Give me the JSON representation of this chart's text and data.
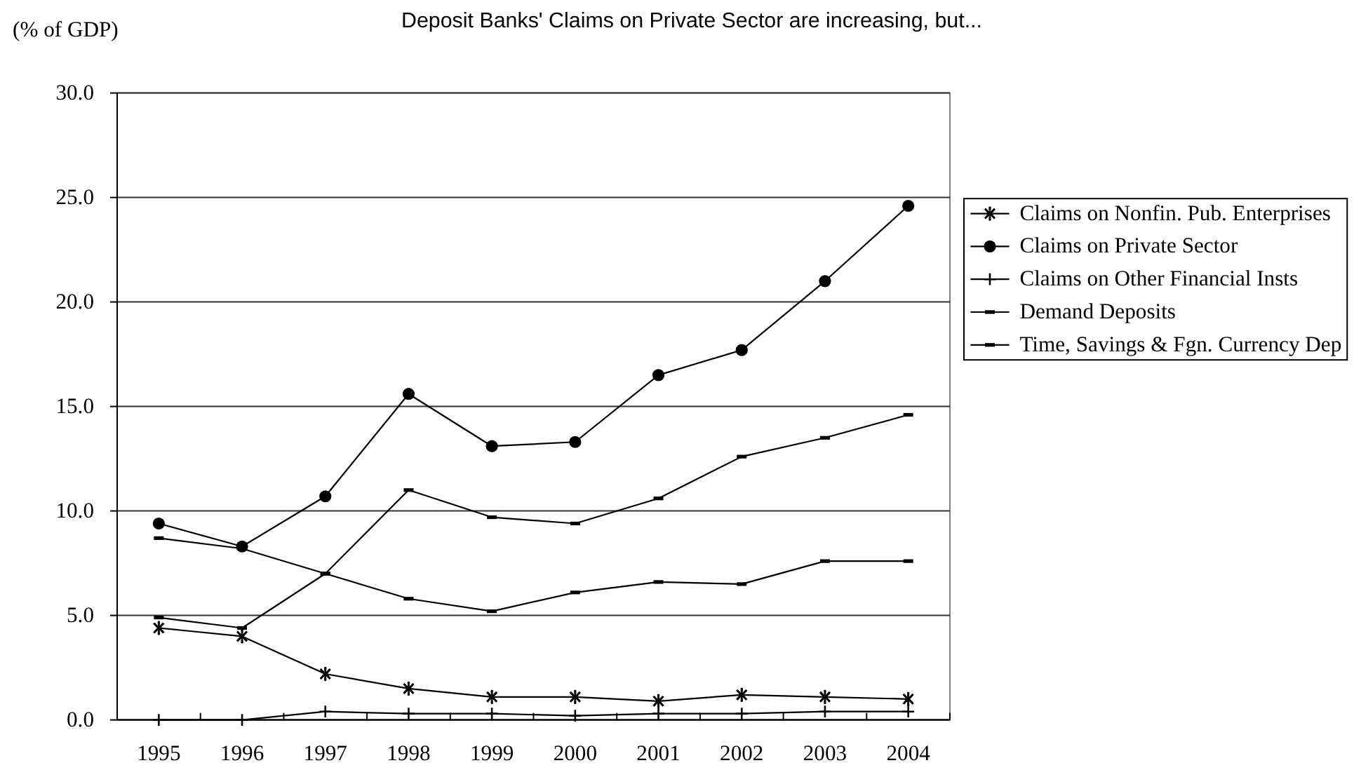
{
  "chart_data": {
    "type": "line",
    "title": "Deposit Banks' Claims on Private Sector are increasing, but...",
    "ylabel": "(% of GDP)",
    "categories": [
      "1995",
      "1996",
      "1997",
      "1998",
      "1999",
      "2000",
      "2001",
      "2002",
      "2003",
      "2004"
    ],
    "series": [
      {
        "name": "Claims on Nonfin. Pub. Enterprises",
        "color": "#000000",
        "marker": "star",
        "values": [
          4.4,
          4.0,
          2.2,
          1.5,
          1.1,
          1.1,
          0.9,
          1.2,
          1.1,
          1.0
        ]
      },
      {
        "name": "Claims on Private Sector",
        "color": "#000000",
        "marker": "circle",
        "values": [
          9.4,
          8.3,
          10.7,
          15.6,
          13.1,
          13.3,
          16.5,
          17.7,
          21.0,
          24.6
        ]
      },
      {
        "name": "Claims on Other Financial Insts",
        "color": "#000000",
        "marker": "cross",
        "values": [
          0.0,
          0.0,
          0.4,
          0.3,
          0.3,
          0.2,
          0.3,
          0.3,
          0.4,
          0.4
        ]
      },
      {
        "name": "Demand Deposits",
        "color": "#000000",
        "marker": "square",
        "values": [
          8.7,
          8.2,
          7.0,
          5.8,
          5.2,
          6.1,
          6.6,
          6.5,
          7.6,
          7.6
        ]
      },
      {
        "name": "Time, Savings & Fgn. Currency Dep",
        "color": "#000000",
        "marker": "square",
        "values": [
          4.9,
          4.4,
          7.0,
          11.0,
          9.7,
          9.4,
          10.6,
          12.6,
          13.5,
          14.6
        ]
      }
    ],
    "ylim": [
      0,
      30
    ],
    "yticks": [
      {
        "value": 0,
        "label": "0.0"
      },
      {
        "value": 5,
        "label": "5.0"
      },
      {
        "value": 10,
        "label": "10.0"
      },
      {
        "value": 15,
        "label": "15.0"
      },
      {
        "value": 20,
        "label": "20.0"
      },
      {
        "value": 25,
        "label": "25.0"
      },
      {
        "value": 30,
        "label": "30.0"
      }
    ],
    "grid": "y",
    "legend": "right",
    "line_style": "solid"
  }
}
